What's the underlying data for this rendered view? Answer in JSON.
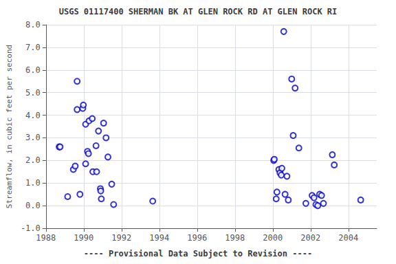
{
  "chart_data": {
    "type": "scatter",
    "title": "USGS 01117400 SHERMAN BK AT GLEN ROCK RD AT GLEN ROCK RI",
    "subtitle": "---- Provisional Data Subject to Revision ----",
    "ylabel": "Streamflow, in cubic feet per second",
    "x": [
      1988.7,
      1988.75,
      1989.15,
      1989.45,
      1989.55,
      1989.65,
      1989.65,
      1989.8,
      1989.95,
      1989.98,
      1990.1,
      1990.1,
      1990.2,
      1990.25,
      1990.28,
      1990.45,
      1990.48,
      1990.65,
      1990.68,
      1990.78,
      1990.88,
      1990.9,
      1990.93,
      1991.05,
      1991.18,
      1991.28,
      1991.48,
      1991.58,
      1993.65,
      2000.05,
      2000.08,
      2000.18,
      2000.22,
      2000.32,
      2000.38,
      2000.45,
      2000.48,
      2000.58,
      2000.65,
      2000.75,
      2000.82,
      2001.0,
      2001.08,
      2001.18,
      2001.38,
      2001.75,
      2002.08,
      2002.18,
      2002.28,
      2002.38,
      2002.48,
      2002.58,
      2002.68,
      2003.15,
      2003.25,
      2004.65
    ],
    "values": [
      2.6,
      2.6,
      0.4,
      1.6,
      1.75,
      4.25,
      5.5,
      0.5,
      4.3,
      4.45,
      3.6,
      1.85,
      2.4,
      2.3,
      3.75,
      3.85,
      1.5,
      2.65,
      1.5,
      3.3,
      0.75,
      0.65,
      0.3,
      3.65,
      3.0,
      2.15,
      0.95,
      0.05,
      0.2,
      2.0,
      2.05,
      0.3,
      0.6,
      1.6,
      1.45,
      1.35,
      1.65,
      7.7,
      0.5,
      1.3,
      0.25,
      5.6,
      3.1,
      5.2,
      2.55,
      0.1,
      0.45,
      0.35,
      0.05,
      0.0,
      0.5,
      0.45,
      0.1,
      2.25,
      1.8,
      0.25
    ],
    "color": "#0000cc",
    "marker": "circle",
    "xlim": [
      1988,
      2005.5
    ],
    "xticks": [
      1988,
      1990,
      1992,
      1994,
      1996,
      1998,
      2000,
      2002,
      2004
    ],
    "ylim": [
      -1.0,
      8.0
    ],
    "yticks": [
      {
        "value": -1.0,
        "label": "-1.0"
      },
      {
        "value": 0.0,
        "label": "0.0"
      },
      {
        "value": 1.0,
        "label": "1.0"
      },
      {
        "value": 2.0,
        "label": "2.0"
      },
      {
        "value": 3.0,
        "label": "3.0"
      },
      {
        "value": 4.0,
        "label": "4.0"
      },
      {
        "value": 5.0,
        "label": "5.0"
      },
      {
        "value": 6.0,
        "label": "6.0"
      },
      {
        "value": 7.0,
        "label": "7.0"
      },
      {
        "value": 8.0,
        "label": "8.0"
      }
    ],
    "grid": true
  }
}
